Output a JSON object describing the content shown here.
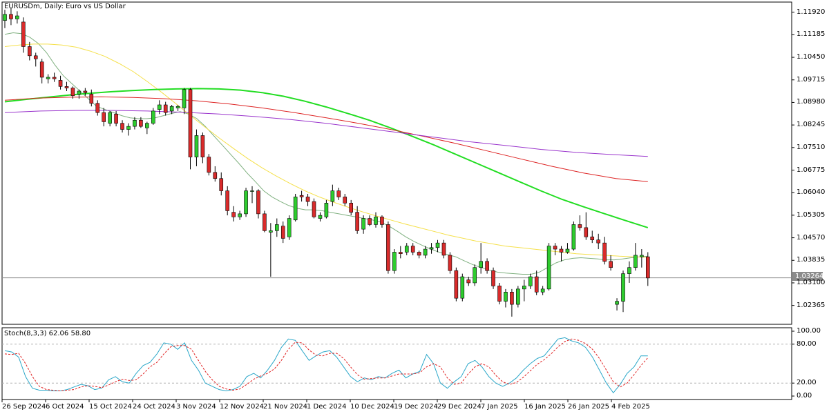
{
  "chart_title": "EURUSDm, Daily:  Euro vs US Dollar",
  "last_price_label": "1.03264",
  "stoch_title": "Stoch(8,3,3) 62.06 58.80",
  "colors": {
    "bull": "#2ecc2e",
    "bear": "#d92b2b",
    "ma_fast": "#7fb07f",
    "ma_yellow": "#f5e04a",
    "ma_green": "#22dd22",
    "ma_red": "#dd2222",
    "ma_purple": "#9933cc",
    "stoch_main": "#2aa7c9",
    "stoch_signal": "#e02020"
  },
  "chart_data": [
    {
      "type": "candlestick",
      "title": "EURUSDm, Daily:  Euro vs US Dollar",
      "y_ticks": [
        "1.11920",
        "1.11185",
        "1.10450",
        "1.09715",
        "1.08980",
        "1.08245",
        "1.07510",
        "1.06775",
        "1.06040",
        "1.05305",
        "1.04570",
        "1.03835",
        "1.03100",
        "1.02365"
      ],
      "x_ticks": [
        "26 Sep 2024",
        "6 Oct 2024",
        "15 Oct 2024",
        "24 Oct 2024",
        "3 Nov 2024",
        "12 Nov 2024",
        "21 Nov 2024",
        "1 Dec 2024",
        "10 Dec 2024",
        "19 Dec 2024",
        "29 Dec 2024",
        "7 Jan 2025",
        "16 Jan 2025",
        "26 Jan 2025",
        "4 Feb 2025"
      ],
      "ylim": [
        1.0175,
        1.1225
      ],
      "last_price": 1.03264,
      "candles": [
        [
          1.1165,
          1.12,
          1.114,
          1.1185
        ],
        [
          1.1185,
          1.1205,
          1.115,
          1.117
        ],
        [
          1.117,
          1.1195,
          1.1155,
          1.118
        ],
        [
          1.116,
          1.1175,
          1.106,
          1.108
        ],
        [
          1.108,
          1.1095,
          1.1035,
          1.105
        ],
        [
          1.105,
          1.106,
          1.1015,
          1.104
        ],
        [
          1.103,
          1.104,
          1.096,
          1.098
        ],
        [
          1.0975,
          1.099,
          1.096,
          1.098
        ],
        [
          1.098,
          1.0995,
          1.0965,
          1.0975
        ],
        [
          1.097,
          1.0985,
          1.094,
          1.095
        ],
        [
          1.095,
          1.0965,
          1.0935,
          1.0945
        ],
        [
          1.0945,
          1.095,
          1.091,
          1.092
        ],
        [
          1.0925,
          1.094,
          1.091,
          1.0935
        ],
        [
          1.0935,
          1.0945,
          1.092,
          1.093
        ],
        [
          1.0925,
          1.094,
          1.0885,
          1.0895
        ],
        [
          1.0895,
          1.0905,
          1.0855,
          1.0865
        ],
        [
          1.0865,
          1.088,
          1.082,
          1.0835
        ],
        [
          1.083,
          1.087,
          1.082,
          1.0865
        ],
        [
          1.086,
          1.087,
          1.082,
          1.083
        ],
        [
          1.083,
          1.084,
          1.08,
          1.081
        ],
        [
          1.081,
          1.083,
          1.079,
          1.082
        ],
        [
          1.082,
          1.085,
          1.081,
          1.084
        ],
        [
          1.084,
          1.085,
          1.0815,
          1.082
        ],
        [
          1.0815,
          1.0835,
          1.0795,
          1.083
        ],
        [
          1.083,
          1.088,
          1.0825,
          1.087
        ],
        [
          1.0875,
          1.0905,
          1.086,
          1.089
        ],
        [
          1.089,
          1.09,
          1.0855,
          1.0865
        ],
        [
          1.087,
          1.089,
          1.086,
          1.0885
        ],
        [
          1.088,
          1.089,
          1.087,
          1.0885
        ],
        [
          1.088,
          1.0945,
          1.086,
          1.094
        ],
        [
          1.094,
          1.0945,
          1.068,
          1.072
        ],
        [
          1.072,
          1.081,
          1.069,
          1.079
        ],
        [
          1.079,
          1.08,
          1.07,
          1.072
        ],
        [
          1.072,
          1.073,
          1.066,
          1.067
        ],
        [
          1.067,
          1.069,
          1.064,
          1.065
        ],
        [
          1.065,
          1.067,
          1.0595,
          1.061
        ],
        [
          1.061,
          1.0625,
          1.053,
          1.0545
        ],
        [
          1.054,
          1.056,
          1.051,
          1.0525
        ],
        [
          1.0525,
          1.0545,
          1.0515,
          1.0535
        ],
        [
          1.0535,
          1.062,
          1.0525,
          1.061
        ],
        [
          1.061,
          1.0625,
          1.057,
          1.061
        ],
        [
          1.061,
          1.0615,
          1.052,
          1.0535
        ],
        [
          1.0535,
          1.0545,
          1.0475,
          1.048
        ],
        [
          1.0475,
          1.0505,
          1.033,
          1.048
        ],
        [
          1.048,
          1.052,
          1.046,
          1.05
        ],
        [
          1.0495,
          1.051,
          1.044,
          1.0455
        ],
        [
          1.046,
          1.053,
          1.045,
          1.052
        ],
        [
          1.0515,
          1.06,
          1.051,
          1.059
        ],
        [
          1.0595,
          1.061,
          1.0575,
          1.059
        ],
        [
          1.059,
          1.06,
          1.056,
          1.0575
        ],
        [
          1.0575,
          1.0585,
          1.052,
          1.0525
        ],
        [
          1.052,
          1.054,
          1.051,
          1.053
        ],
        [
          1.0525,
          1.058,
          1.052,
          1.057
        ],
        [
          1.0575,
          1.063,
          1.056,
          1.061
        ],
        [
          1.061,
          1.062,
          1.058,
          1.059
        ],
        [
          1.059,
          1.06,
          1.056,
          1.057
        ],
        [
          1.057,
          1.058,
          1.053,
          1.054
        ],
        [
          1.054,
          1.056,
          1.047,
          1.048
        ],
        [
          1.0485,
          1.053,
          1.047,
          1.052
        ],
        [
          1.052,
          1.053,
          1.0495,
          1.05
        ],
        [
          1.05,
          1.054,
          1.049,
          1.0525
        ],
        [
          1.0525,
          1.053,
          1.049,
          1.05
        ],
        [
          1.05,
          1.051,
          1.034,
          1.035
        ],
        [
          1.035,
          1.042,
          1.034,
          1.041
        ],
        [
          1.041,
          1.043,
          1.039,
          1.0405
        ],
        [
          1.041,
          1.044,
          1.04,
          1.043
        ],
        [
          1.043,
          1.044,
          1.04,
          1.041
        ],
        [
          1.041,
          1.0415,
          1.039,
          1.04
        ],
        [
          1.04,
          1.043,
          1.039,
          1.042
        ],
        [
          1.042,
          1.044,
          1.0405,
          1.0425
        ],
        [
          1.0425,
          1.045,
          1.041,
          1.044
        ],
        [
          1.044,
          1.045,
          1.039,
          1.04
        ],
        [
          1.04,
          1.041,
          1.034,
          1.035
        ],
        [
          1.035,
          1.036,
          1.025,
          1.026
        ],
        [
          1.026,
          1.034,
          1.025,
          1.033
        ],
        [
          1.032,
          1.033,
          1.03,
          1.031
        ],
        [
          1.031,
          1.037,
          1.03,
          1.036
        ],
        [
          1.036,
          1.044,
          1.034,
          1.038
        ],
        [
          1.038,
          1.039,
          1.034,
          1.035
        ],
        [
          1.035,
          1.036,
          1.029,
          1.03
        ],
        [
          1.03,
          1.031,
          1.024,
          1.025
        ],
        [
          1.025,
          1.029,
          1.023,
          1.028
        ],
        [
          1.028,
          1.029,
          1.02,
          1.024
        ],
        [
          1.024,
          1.03,
          1.023,
          1.029
        ],
        [
          1.029,
          1.032,
          1.025,
          1.03
        ],
        [
          1.03,
          1.034,
          1.029,
          1.033
        ],
        [
          1.033,
          1.035,
          1.027,
          1.028
        ],
        [
          1.028,
          1.03,
          1.027,
          1.029
        ],
        [
          1.029,
          1.044,
          1.0285,
          1.043
        ],
        [
          1.043,
          1.044,
          1.04,
          1.042
        ],
        [
          1.042,
          1.043,
          1.038,
          1.041
        ],
        [
          1.041,
          1.044,
          1.0405,
          1.042
        ],
        [
          1.042,
          1.051,
          1.0415,
          1.05
        ],
        [
          1.05,
          1.053,
          1.048,
          1.049
        ],
        [
          1.049,
          1.054,
          1.045,
          1.046
        ],
        [
          1.046,
          1.048,
          1.044,
          1.045
        ],
        [
          1.045,
          1.047,
          1.042,
          1.044
        ],
        [
          1.044,
          1.046,
          1.037,
          1.038
        ],
        [
          1.038,
          1.04,
          1.035,
          1.036
        ],
        [
          1.024,
          1.026,
          1.022,
          1.025
        ],
        [
          1.025,
          1.035,
          1.0215,
          1.034
        ],
        [
          1.034,
          1.038,
          1.031,
          1.036
        ],
        [
          1.036,
          1.044,
          1.035,
          1.04
        ],
        [
          1.0395,
          1.042,
          1.036,
          1.04
        ],
        [
          1.0395,
          1.041,
          1.03,
          1.0326
        ]
      ],
      "ma_series": [
        {
          "key": "ma_fast",
          "values": [
            1.112,
            1.1125,
            1.1122,
            1.111,
            1.109,
            1.106,
            1.102,
            1.0985,
            1.096,
            1.0935,
            1.091,
            1.0885,
            1.0875,
            1.0865,
            1.0855,
            1.0848,
            1.0845,
            1.0845,
            1.0848,
            1.0855,
            1.0862,
            1.0868,
            1.086,
            1.0845,
            1.082,
            1.079,
            1.076,
            1.073,
            1.07,
            1.0668,
            1.064,
            1.061,
            1.059,
            1.0575,
            1.0562,
            1.0553,
            1.0548,
            1.0548,
            1.0545,
            1.054,
            1.0535,
            1.053,
            1.0525,
            1.052,
            1.0515,
            1.0508,
            1.0495,
            1.0478,
            1.046,
            1.0445,
            1.0432,
            1.042,
            1.041,
            1.0402,
            1.0395,
            1.0382,
            1.037,
            1.036,
            1.0352,
            1.0345,
            1.0342,
            1.034,
            1.0338,
            1.0338,
            1.0345,
            1.036,
            1.0375,
            1.0385,
            1.039,
            1.0392,
            1.039,
            1.0388,
            1.0385,
            1.0385,
            1.0388,
            1.0392,
            1.0395,
            1.0397
          ],
          "start": 0
        },
        {
          "key": "ma_yellow",
          "values": [
            1.108,
            1.1085,
            1.1088,
            1.1088,
            1.1085,
            1.1078,
            1.1065,
            1.1048,
            1.1025,
            1.0998,
            1.0965,
            1.093,
            1.0893,
            1.0855,
            1.0818,
            1.0782,
            1.0748,
            1.0715,
            1.0685,
            1.0658,
            1.0633,
            1.061,
            1.059,
            1.0573,
            1.0557,
            1.0542,
            1.0528,
            1.0515,
            1.0502,
            1.049,
            1.0478,
            1.0466,
            1.0456,
            1.0446,
            1.0438,
            1.043,
            1.0425,
            1.042,
            1.0415,
            1.041,
            1.0405,
            1.0402,
            1.04,
            1.0397,
            1.0395,
            1.0393
          ],
          "start": 0
        },
        {
          "key": "ma_green",
          "values": [
            1.09,
            1.0908,
            1.0915,
            1.0922,
            1.0928,
            1.0933,
            1.0937,
            1.094,
            1.0942,
            1.0943,
            1.0942,
            1.0938,
            1.093,
            1.0918,
            1.0902,
            1.0883,
            1.0862,
            1.084,
            1.0815,
            1.0788,
            1.076,
            1.073,
            1.07,
            1.067,
            1.064,
            1.061,
            1.0582,
            1.0558,
            1.0535,
            1.0512,
            1.049
          ],
          "start": 0
        },
        {
          "key": "ma_red",
          "values": [
            1.0905,
            1.0912,
            1.0915,
            1.0916,
            1.0914,
            1.091,
            1.0903,
            1.0893,
            1.088,
            1.0865,
            1.0848,
            1.083,
            1.081,
            1.0788,
            1.0765,
            1.074,
            1.0715,
            1.069,
            1.0668,
            1.065,
            1.064
          ],
          "start": 0
        },
        {
          "key": "ma_purple",
          "values": [
            1.0865,
            1.087,
            1.0872,
            1.0872,
            1.087,
            1.0866,
            1.086,
            1.0852,
            1.0842,
            1.083,
            1.0815,
            1.08,
            1.0785,
            1.077,
            1.0758,
            1.0745,
            1.0735,
            1.0728,
            1.0722
          ],
          "start": 0
        }
      ]
    },
    {
      "type": "line",
      "title": "Stoch(8,3,3) 62.06 58.80",
      "y_ticks": [
        "100.00",
        "80.00",
        "20.00",
        "0.00"
      ],
      "ylim": [
        0,
        100
      ],
      "levels": [
        80,
        20
      ],
      "series": [
        {
          "key": "stoch_main",
          "values": [
            70,
            68,
            60,
            30,
            12,
            9,
            9,
            8,
            8,
            10,
            14,
            18,
            16,
            10,
            12,
            25,
            30,
            22,
            20,
            35,
            47,
            52,
            65,
            82,
            80,
            72,
            82,
            55,
            40,
            20,
            15,
            10,
            8,
            10,
            15,
            30,
            35,
            28,
            40,
            55,
            75,
            88,
            86,
            70,
            55,
            62,
            68,
            70,
            60,
            45,
            30,
            22,
            28,
            25,
            30,
            28,
            35,
            40,
            28,
            34,
            38,
            64,
            50,
            20,
            12,
            22,
            30,
            50,
            55,
            45,
            30,
            20,
            15,
            20,
            28,
            40,
            50,
            58,
            62,
            75,
            88,
            90,
            85,
            82,
            75,
            60,
            40,
            20,
            5,
            18,
            35,
            45,
            62,
            62
          ]
        },
        {
          "key": "stoch_signal",
          "values": [
            65,
            64,
            66,
            50,
            30,
            15,
            10,
            9,
            8,
            9,
            10,
            14,
            16,
            15,
            13,
            17,
            22,
            26,
            24,
            25,
            34,
            45,
            52,
            65,
            76,
            78,
            78,
            72,
            55,
            38,
            25,
            15,
            11,
            9,
            11,
            18,
            26,
            31,
            35,
            42,
            55,
            72,
            83,
            82,
            71,
            63,
            62,
            66,
            66,
            58,
            45,
            33,
            26,
            27,
            28,
            28,
            31,
            34,
            34,
            34,
            36,
            45,
            50,
            45,
            28,
            18,
            20,
            34,
            45,
            50,
            45,
            32,
            22,
            18,
            21,
            29,
            39,
            49,
            56,
            65,
            76,
            84,
            88,
            86,
            81,
            72,
            58,
            40,
            22,
            14,
            20,
            33,
            47,
            59
          ]
        }
      ]
    }
  ]
}
